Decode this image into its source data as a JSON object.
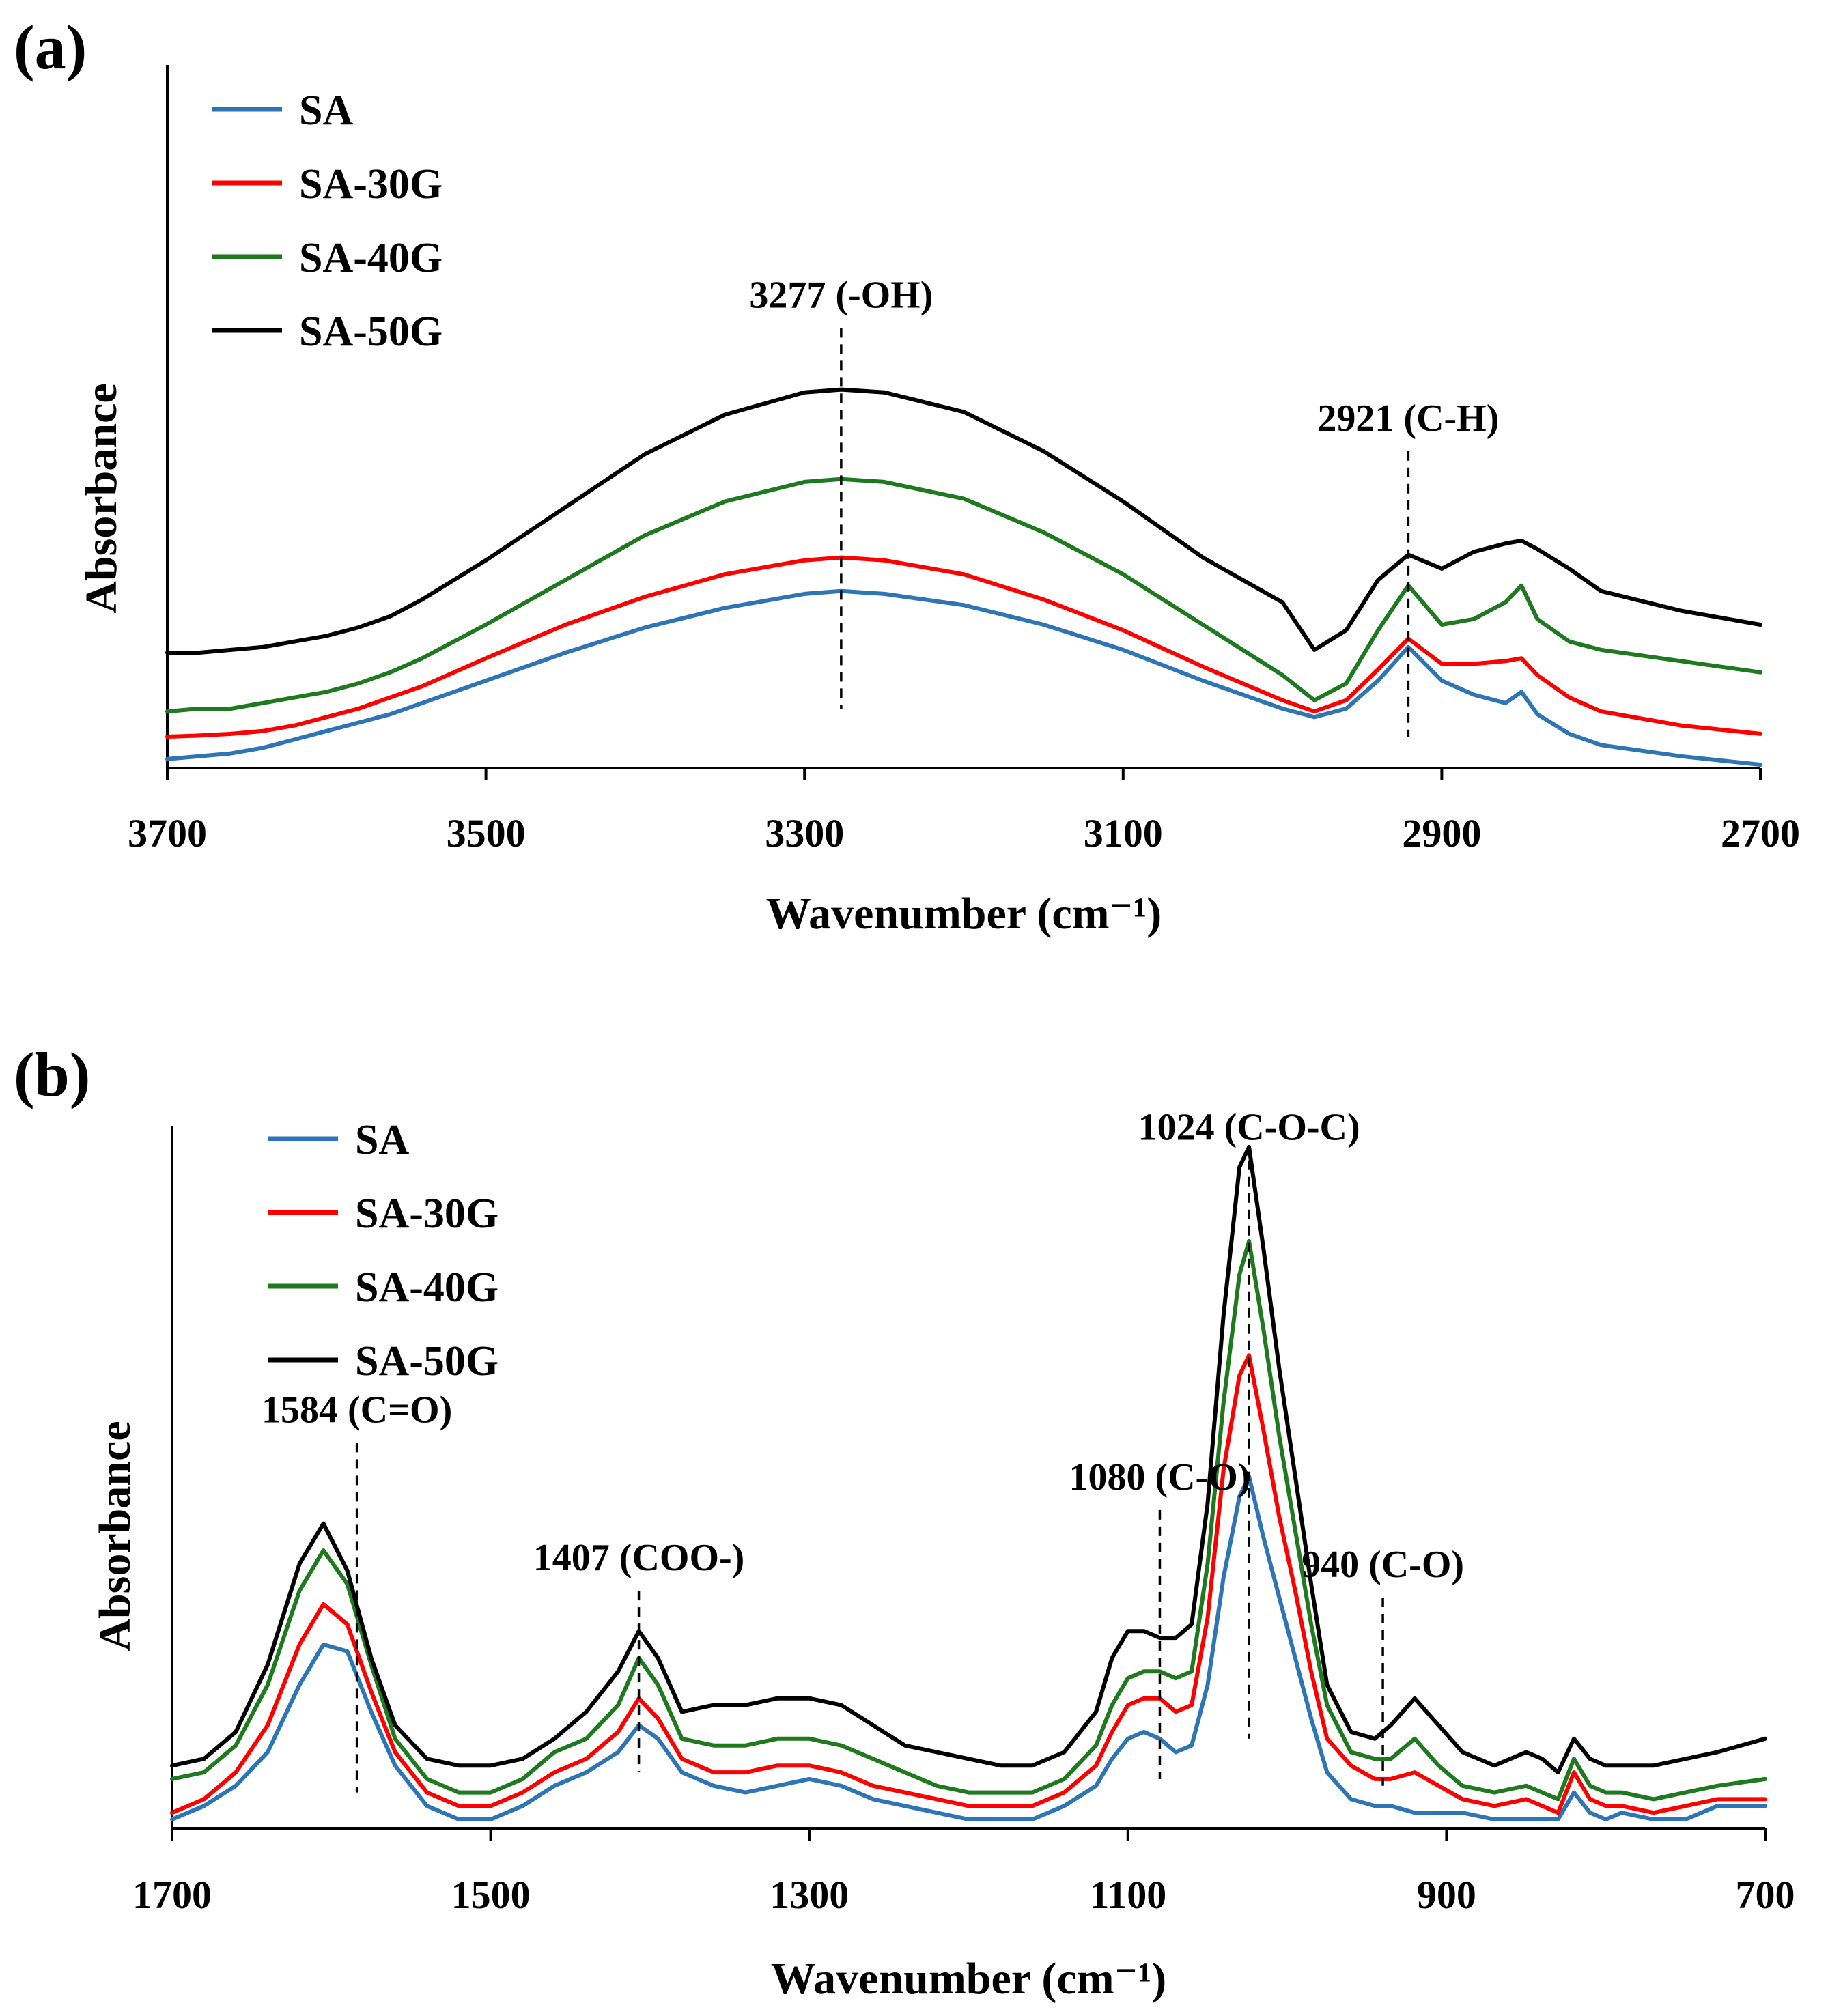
{
  "chart_data": [
    {
      "panel_label": "(a)",
      "type": "line",
      "title": "",
      "xlabel": "Wavenumber (cm⁻¹)",
      "ylabel": "Absorbance",
      "xlim": [
        3700,
        2700
      ],
      "ylim": [
        0,
        1
      ],
      "x_reversed": true,
      "x_ticks": [
        "3700",
        "3500",
        "3300",
        "3100",
        "2900",
        "2700"
      ],
      "grid": false,
      "legend_position": "top-left",
      "series": [
        {
          "name": "SA",
          "color": "#2e75b6",
          "x": [
            3700,
            3680,
            3660,
            3640,
            3620,
            3600,
            3580,
            3560,
            3540,
            3520,
            3500,
            3450,
            3400,
            3350,
            3300,
            3277,
            3250,
            3200,
            3150,
            3100,
            3050,
            3000,
            2980,
            2960,
            2940,
            2921,
            2900,
            2880,
            2860,
            2850,
            2840,
            2820,
            2800,
            2750,
            2700
          ],
          "y": [
            0.01,
            0.015,
            0.02,
            0.03,
            0.045,
            0.06,
            0.075,
            0.09,
            0.11,
            0.13,
            0.15,
            0.2,
            0.245,
            0.28,
            0.305,
            0.31,
            0.305,
            0.285,
            0.25,
            0.205,
            0.15,
            0.1,
            0.085,
            0.1,
            0.15,
            0.21,
            0.15,
            0.125,
            0.11,
            0.13,
            0.09,
            0.055,
            0.035,
            0.015,
            0.0
          ]
        },
        {
          "name": "SA-30G",
          "color": "#ff0000",
          "x": [
            3700,
            3680,
            3660,
            3640,
            3620,
            3600,
            3580,
            3560,
            3540,
            3520,
            3500,
            3450,
            3400,
            3350,
            3300,
            3277,
            3250,
            3200,
            3150,
            3100,
            3050,
            3000,
            2980,
            2960,
            2940,
            2921,
            2900,
            2880,
            2860,
            2850,
            2840,
            2820,
            2800,
            2750,
            2700
          ],
          "y": [
            0.05,
            0.052,
            0.055,
            0.06,
            0.07,
            0.085,
            0.1,
            0.12,
            0.14,
            0.165,
            0.19,
            0.25,
            0.3,
            0.34,
            0.365,
            0.37,
            0.365,
            0.34,
            0.295,
            0.24,
            0.175,
            0.115,
            0.095,
            0.115,
            0.17,
            0.225,
            0.18,
            0.18,
            0.185,
            0.19,
            0.16,
            0.12,
            0.095,
            0.07,
            0.055
          ]
        },
        {
          "name": "SA-40G",
          "color": "#1f7a1f",
          "x": [
            3700,
            3680,
            3660,
            3640,
            3620,
            3600,
            3580,
            3560,
            3540,
            3520,
            3500,
            3450,
            3400,
            3350,
            3300,
            3277,
            3250,
            3200,
            3150,
            3100,
            3050,
            3000,
            2980,
            2960,
            2940,
            2921,
            2900,
            2880,
            2860,
            2850,
            2840,
            2820,
            2800,
            2750,
            2700
          ],
          "y": [
            0.095,
            0.1,
            0.1,
            0.11,
            0.12,
            0.13,
            0.145,
            0.165,
            0.19,
            0.22,
            0.25,
            0.33,
            0.41,
            0.47,
            0.505,
            0.51,
            0.505,
            0.475,
            0.415,
            0.34,
            0.25,
            0.16,
            0.115,
            0.145,
            0.24,
            0.32,
            0.25,
            0.26,
            0.29,
            0.32,
            0.26,
            0.22,
            0.205,
            0.185,
            0.165
          ]
        },
        {
          "name": "SA-50G",
          "color": "#000000",
          "x": [
            3700,
            3680,
            3660,
            3640,
            3620,
            3600,
            3580,
            3560,
            3540,
            3520,
            3500,
            3450,
            3400,
            3350,
            3300,
            3277,
            3250,
            3200,
            3150,
            3100,
            3050,
            3000,
            2980,
            2960,
            2940,
            2921,
            2900,
            2880,
            2860,
            2850,
            2840,
            2820,
            2800,
            2750,
            2700
          ],
          "y": [
            0.2,
            0.2,
            0.205,
            0.21,
            0.22,
            0.23,
            0.245,
            0.265,
            0.295,
            0.33,
            0.365,
            0.46,
            0.555,
            0.625,
            0.665,
            0.67,
            0.665,
            0.63,
            0.56,
            0.47,
            0.37,
            0.29,
            0.205,
            0.24,
            0.33,
            0.375,
            0.35,
            0.38,
            0.395,
            0.4,
            0.385,
            0.35,
            0.31,
            0.275,
            0.25
          ]
        }
      ],
      "annotations": [
        {
          "text": "3277 (-OH)",
          "x": 3277,
          "y_top": 0.78,
          "y_bottom": 0.1
        },
        {
          "text": "2921 (C-H)",
          "x": 2921,
          "y_top": 0.56,
          "y_bottom": 0.05
        }
      ]
    },
    {
      "panel_label": "(b)",
      "type": "line",
      "title": "",
      "xlabel": "Wavenumber (cm⁻¹)",
      "ylabel": "Absorbance",
      "xlim": [
        1700,
        700
      ],
      "ylim": [
        0,
        1
      ],
      "x_reversed": true,
      "x_ticks": [
        "1700",
        "1500",
        "1300",
        "1100",
        "900",
        "700"
      ],
      "grid": false,
      "legend_position": "top-left",
      "series": [
        {
          "name": "SA",
          "color": "#2e75b6",
          "x": [
            1700,
            1680,
            1660,
            1640,
            1620,
            1605,
            1590,
            1575,
            1560,
            1540,
            1520,
            1500,
            1480,
            1460,
            1440,
            1420,
            1407,
            1395,
            1380,
            1360,
            1340,
            1320,
            1300,
            1280,
            1260,
            1240,
            1220,
            1200,
            1180,
            1160,
            1140,
            1120,
            1110,
            1100,
            1090,
            1080,
            1070,
            1060,
            1050,
            1040,
            1030,
            1024,
            1015,
            1005,
            995,
            985,
            975,
            960,
            945,
            935,
            920,
            905,
            890,
            870,
            850,
            840,
            830,
            820,
            810,
            800,
            790,
            770,
            750,
            730,
            700
          ],
          "y": [
            0.0,
            0.02,
            0.05,
            0.1,
            0.2,
            0.26,
            0.25,
            0.16,
            0.08,
            0.02,
            0.0,
            0.0,
            0.02,
            0.05,
            0.07,
            0.1,
            0.14,
            0.12,
            0.07,
            0.05,
            0.04,
            0.05,
            0.06,
            0.05,
            0.03,
            0.02,
            0.01,
            0.0,
            0.0,
            0.0,
            0.02,
            0.05,
            0.09,
            0.12,
            0.13,
            0.12,
            0.1,
            0.11,
            0.2,
            0.36,
            0.48,
            0.51,
            0.42,
            0.33,
            0.24,
            0.15,
            0.07,
            0.03,
            0.02,
            0.02,
            0.01,
            0.01,
            0.01,
            0.0,
            0.0,
            0.0,
            0.0,
            0.04,
            0.01,
            0.0,
            0.01,
            0.0,
            0.0,
            0.02,
            0.02
          ]
        },
        {
          "name": "SA-30G",
          "color": "#ff0000",
          "x": [
            1700,
            1680,
            1660,
            1640,
            1620,
            1605,
            1590,
            1575,
            1560,
            1540,
            1520,
            1500,
            1480,
            1460,
            1440,
            1420,
            1407,
            1395,
            1380,
            1360,
            1340,
            1320,
            1300,
            1280,
            1260,
            1240,
            1220,
            1200,
            1180,
            1160,
            1140,
            1120,
            1110,
            1100,
            1090,
            1080,
            1070,
            1060,
            1050,
            1040,
            1030,
            1024,
            1015,
            1005,
            995,
            985,
            975,
            960,
            945,
            935,
            920,
            905,
            890,
            870,
            850,
            840,
            830,
            820,
            810,
            800,
            790,
            770,
            750,
            730,
            700
          ],
          "y": [
            0.01,
            0.03,
            0.07,
            0.14,
            0.26,
            0.32,
            0.29,
            0.19,
            0.1,
            0.04,
            0.02,
            0.02,
            0.04,
            0.07,
            0.09,
            0.13,
            0.18,
            0.15,
            0.09,
            0.07,
            0.07,
            0.08,
            0.08,
            0.07,
            0.05,
            0.04,
            0.03,
            0.02,
            0.02,
            0.02,
            0.04,
            0.08,
            0.13,
            0.17,
            0.18,
            0.18,
            0.16,
            0.17,
            0.3,
            0.52,
            0.66,
            0.69,
            0.58,
            0.45,
            0.34,
            0.22,
            0.12,
            0.08,
            0.06,
            0.06,
            0.07,
            0.05,
            0.03,
            0.02,
            0.03,
            0.02,
            0.01,
            0.07,
            0.03,
            0.02,
            0.02,
            0.01,
            0.02,
            0.03,
            0.03
          ]
        },
        {
          "name": "SA-40G",
          "color": "#1f7a1f",
          "x": [
            1700,
            1680,
            1660,
            1640,
            1620,
            1605,
            1590,
            1575,
            1560,
            1540,
            1520,
            1500,
            1480,
            1460,
            1440,
            1420,
            1407,
            1395,
            1380,
            1360,
            1340,
            1320,
            1300,
            1280,
            1260,
            1240,
            1220,
            1200,
            1180,
            1160,
            1140,
            1120,
            1110,
            1100,
            1090,
            1080,
            1070,
            1060,
            1050,
            1040,
            1030,
            1024,
            1015,
            1005,
            995,
            985,
            975,
            960,
            945,
            935,
            920,
            905,
            890,
            870,
            850,
            840,
            830,
            820,
            810,
            800,
            790,
            770,
            750,
            730,
            700
          ],
          "y": [
            0.06,
            0.07,
            0.11,
            0.2,
            0.34,
            0.4,
            0.35,
            0.23,
            0.12,
            0.06,
            0.04,
            0.04,
            0.06,
            0.1,
            0.12,
            0.17,
            0.24,
            0.2,
            0.12,
            0.11,
            0.11,
            0.12,
            0.12,
            0.11,
            0.09,
            0.07,
            0.05,
            0.04,
            0.04,
            0.04,
            0.06,
            0.11,
            0.17,
            0.21,
            0.22,
            0.22,
            0.21,
            0.22,
            0.38,
            0.62,
            0.81,
            0.86,
            0.73,
            0.57,
            0.43,
            0.29,
            0.17,
            0.1,
            0.09,
            0.09,
            0.12,
            0.08,
            0.05,
            0.04,
            0.05,
            0.04,
            0.03,
            0.09,
            0.05,
            0.04,
            0.04,
            0.03,
            0.04,
            0.05,
            0.06
          ]
        },
        {
          "name": "SA-50G",
          "color": "#000000",
          "x": [
            1700,
            1680,
            1660,
            1640,
            1620,
            1605,
            1590,
            1575,
            1560,
            1540,
            1520,
            1500,
            1480,
            1460,
            1440,
            1420,
            1407,
            1395,
            1380,
            1360,
            1340,
            1320,
            1300,
            1280,
            1260,
            1240,
            1220,
            1200,
            1180,
            1160,
            1140,
            1120,
            1110,
            1100,
            1090,
            1080,
            1070,
            1060,
            1050,
            1040,
            1030,
            1024,
            1015,
            1005,
            995,
            985,
            975,
            960,
            945,
            935,
            920,
            905,
            890,
            870,
            850,
            840,
            830,
            820,
            810,
            800,
            790,
            770,
            750,
            730,
            700
          ],
          "y": [
            0.08,
            0.09,
            0.13,
            0.23,
            0.38,
            0.44,
            0.37,
            0.24,
            0.14,
            0.09,
            0.08,
            0.08,
            0.09,
            0.12,
            0.16,
            0.22,
            0.28,
            0.24,
            0.16,
            0.17,
            0.17,
            0.18,
            0.18,
            0.17,
            0.14,
            0.11,
            0.1,
            0.09,
            0.08,
            0.08,
            0.1,
            0.16,
            0.24,
            0.28,
            0.28,
            0.27,
            0.27,
            0.29,
            0.47,
            0.75,
            0.97,
            1.0,
            0.85,
            0.67,
            0.51,
            0.35,
            0.2,
            0.13,
            0.12,
            0.14,
            0.18,
            0.14,
            0.1,
            0.08,
            0.1,
            0.09,
            0.07,
            0.12,
            0.09,
            0.08,
            0.08,
            0.08,
            0.09,
            0.1,
            0.12
          ]
        }
      ],
      "annotations": [
        {
          "text": "1584 (C=O)",
          "x": 1584,
          "y_top": 0.56,
          "y_bottom": 0.04
        },
        {
          "text": "1407 (COO-)",
          "x": 1407,
          "y_top": 0.34,
          "y_bottom": 0.07
        },
        {
          "text": "1080 (C-O)",
          "x": 1080,
          "y_top": 0.46,
          "y_bottom": 0.06
        },
        {
          "text": "1024 (C-O-C)",
          "x": 1024,
          "y_top": 0.98,
          "y_bottom": 0.12
        },
        {
          "text": "940 (C-O)",
          "x": 940,
          "y_top": 0.33,
          "y_bottom": 0.05
        }
      ]
    }
  ]
}
